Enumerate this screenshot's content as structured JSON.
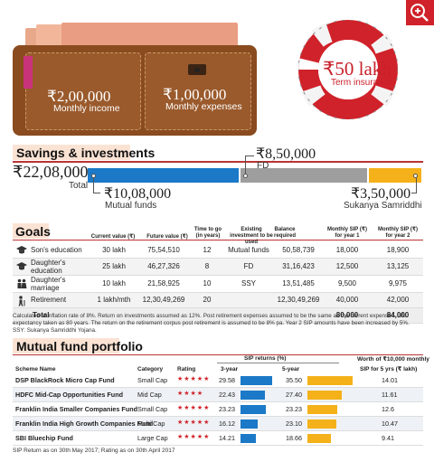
{
  "colors": {
    "blue": "#1b79c8",
    "gray": "#9e9e9e",
    "gold": "#f5b11a",
    "red": "#d0222a"
  },
  "wallet": {
    "left_amount": "₹2,00,000",
    "left_label": "Monthly income",
    "right_amount": "₹1,00,000",
    "right_label": "Monthly expenses"
  },
  "insurance": {
    "amount": "₹50 lakh",
    "label": "Term insurance"
  },
  "savings": {
    "title": "Savings & investments",
    "total_amount": "₹22,08,000",
    "total_label": "Total",
    "fd_amount": "₹8,50,000",
    "fd_label": "FD",
    "mf_amount": "₹10,08,000",
    "mf_label": "Mutual funds",
    "ss_amount": "₹3,50,000",
    "ss_label": "Sukanya Samriddhi",
    "bars": {
      "mutual_funds": 1008000,
      "fd": 850000,
      "sukanya": 350000
    }
  },
  "goals": {
    "title": "Goals",
    "headers": [
      "Current value (₹)",
      "Future value (₹)",
      "Time to go (in years)",
      "Existing investment to be used",
      "Balance required",
      "Monthly SIP (₹) for year 1",
      "Monthly SIP (₹) for year 2"
    ],
    "rows": [
      {
        "icon": "graduate-icon",
        "name": "Son's education",
        "current": "30 lakh",
        "future": "75,54,510",
        "years": "12",
        "existing": "Mutual funds",
        "balance": "50,58,739",
        "sip1": "18,000",
        "sip2": "18,900"
      },
      {
        "icon": "graduate-icon",
        "name": "Daughter's education",
        "current": "25 lakh",
        "future": "46,27,326",
        "years": "8",
        "existing": "FD",
        "balance": "31,16,423",
        "sip1": "12,500",
        "sip2": "13,125"
      },
      {
        "icon": "couple-icon",
        "name": "Daughter's marriage",
        "current": "10 lakh",
        "future": "21,58,925",
        "years": "10",
        "existing": "SSY",
        "balance": "13,51,485",
        "sip1": "9,500",
        "sip2": "9,975"
      },
      {
        "icon": "elder-icon",
        "name": "Retirement",
        "current": "1 lakh/mth",
        "future": "12,30,49,269",
        "years": "20",
        "existing": "",
        "balance": "12,30,49,269",
        "sip1": "40,000",
        "sip2": "42,000"
      }
    ],
    "total": {
      "label": "Total",
      "sip1": "80,000",
      "sip2": "84,000"
    },
    "note": "Calculated at inflation rate of 8%. Return on investments assumed as 12%. Post retirement expenses assumed to be the same as the current expenses. Life expectancy taken as 80 years. The return on the retirement corpus post retirement is assumed to be 8% pa. Year 2 SIP amounts have been increased by 5%. SSY: Sukanya Samriddhi Yojana."
  },
  "mf": {
    "title": "Mutual fund portfolio",
    "sip_returns_header": "SIP returns (%)",
    "worth_header_1": "Worth of ₹10,000 monthly",
    "worth_header_2": "SIP for 5 yrs (₹ lakh)",
    "col_scheme": "Scheme Name",
    "col_category": "Category",
    "col_rating": "Rating",
    "col_3yr": "3-year",
    "col_5yr": "5-year",
    "rows": [
      {
        "name": "DSP BlackRock Micro Cap Fund",
        "category": "Small Cap",
        "rating": 5,
        "stars": "★★★★★",
        "r3": 29.58,
        "r3_label": "29.58",
        "r5": 35.5,
        "r5_label": "35.50",
        "worth": 14.01,
        "worth_label": "14.01"
      },
      {
        "name": "HDFC Mid-Cap Opportunities Fund",
        "category": "Mid Cap",
        "rating": 4,
        "stars": "★★★★",
        "r3": 22.43,
        "r3_label": "22.43",
        "r5": 27.4,
        "r5_label": "27.40",
        "worth": 11.61,
        "worth_label": "11.61"
      },
      {
        "name": "Franklin India Smaller Companies Fund",
        "category": "Small Cap",
        "rating": 5,
        "stars": "★★★★★",
        "r3": 23.23,
        "r3_label": "23.23",
        "r5": 23.23,
        "r5_label": "23.23",
        "worth": 12.6,
        "worth_label": "12.6"
      },
      {
        "name": "Franklin India High Growth Companies Fund",
        "category": "Multi Cap",
        "rating": 5,
        "stars": "★★★★★",
        "r3": 16.12,
        "r3_label": "16.12",
        "r5": 23.1,
        "r5_label": "23.10",
        "worth": 10.47,
        "worth_label": "10.47"
      },
      {
        "name": "SBI Bluechip Fund",
        "category": "Large Cap",
        "rating": 5,
        "stars": "★★★★★",
        "r3": 14.21,
        "r3_label": "14.21",
        "r5": 18.66,
        "r5_label": "18.66",
        "worth": 9.41,
        "worth_label": "9.41"
      }
    ],
    "footnote": "SIP Return as on 30th May 2017; Rating as on 30th April 2017"
  }
}
